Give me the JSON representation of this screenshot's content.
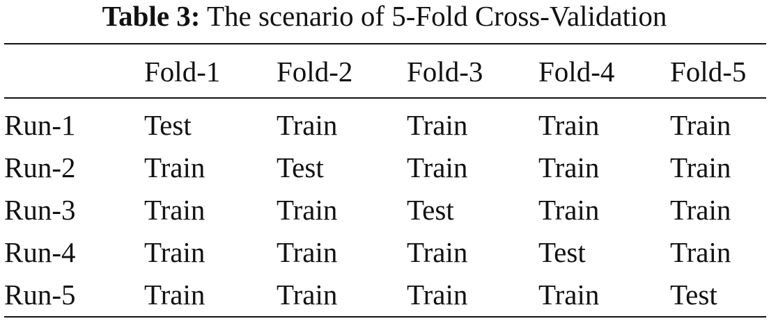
{
  "caption": {
    "label": "Table 3:",
    "text": "The scenario of 5-Fold Cross-Validation"
  },
  "table": {
    "header": [
      "",
      "Fold-1",
      "Fold-2",
      "Fold-3",
      "Fold-4",
      "Fold-5"
    ],
    "rows": [
      [
        "Run-1",
        "Test",
        "Train",
        "Train",
        "Train",
        "Train"
      ],
      [
        "Run-2",
        "Train",
        "Test",
        "Train",
        "Train",
        "Train"
      ],
      [
        "Run-3",
        "Train",
        "Train",
        "Test",
        "Train",
        "Train"
      ],
      [
        "Run-4",
        "Train",
        "Train",
        "Train",
        "Test",
        "Train"
      ],
      [
        "Run-5",
        "Train",
        "Train",
        "Train",
        "Train",
        "Test"
      ]
    ]
  }
}
